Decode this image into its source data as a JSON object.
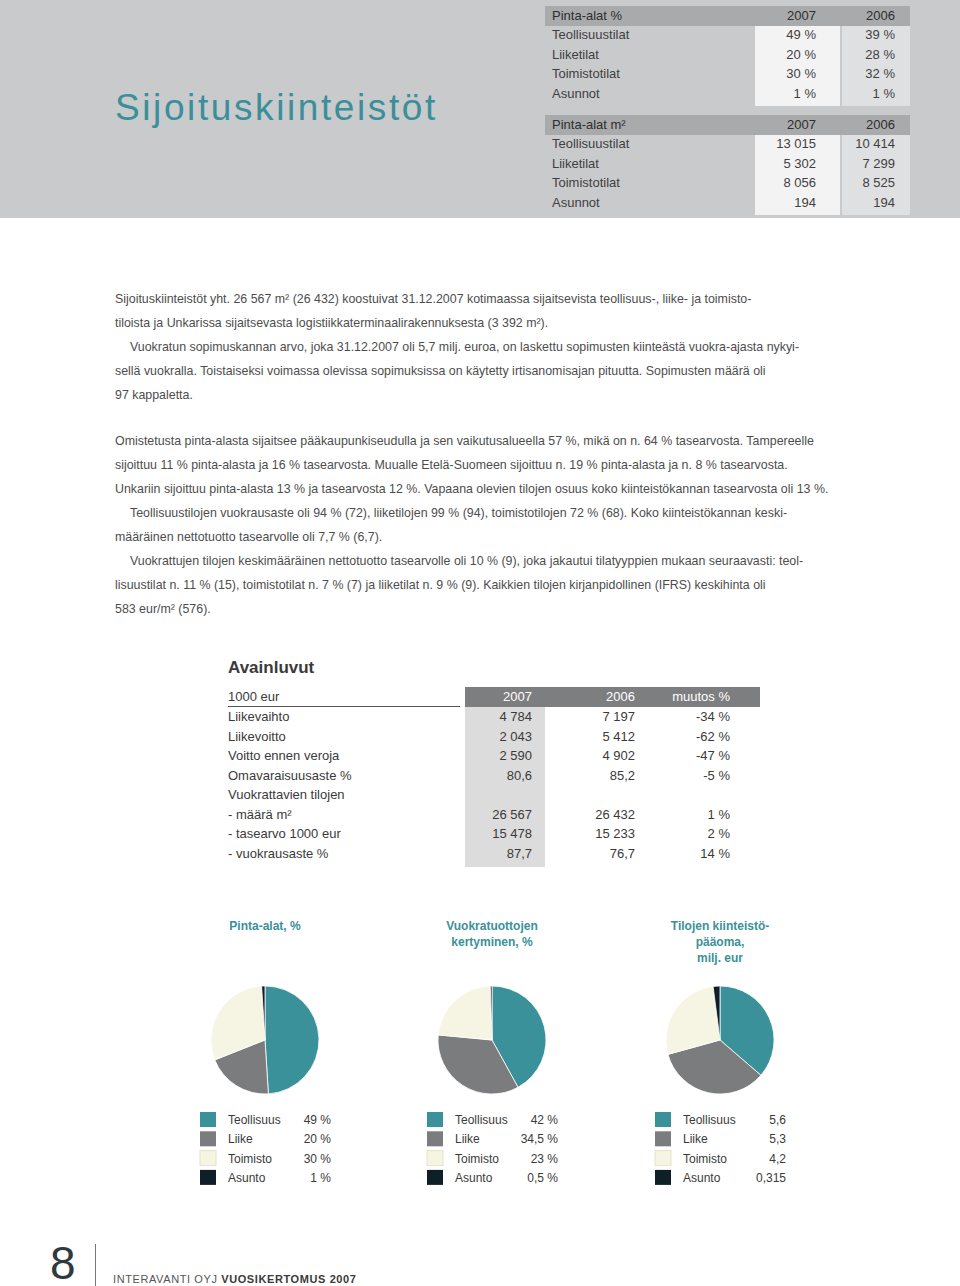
{
  "header": {
    "title": "Sijoituskiinteistöt",
    "area_tables": [
      {
        "header": [
          "Pinta-alat %",
          "2007",
          "2006"
        ],
        "rows": [
          [
            "Teollisuustilat",
            "49 %",
            "39 %"
          ],
          [
            "Liiketilat",
            "20 %",
            "28 %"
          ],
          [
            "Toimistotilat",
            "30 %",
            "32 %"
          ],
          [
            "Asunnot",
            "1 %",
            "1 %"
          ]
        ]
      },
      {
        "header": [
          "Pinta-alat m²",
          "2007",
          "2006"
        ],
        "rows": [
          [
            "Teollisuustilat",
            "13 015",
            "10 414"
          ],
          [
            "Liiketilat",
            "5 302",
            "7 299"
          ],
          [
            "Toimistotilat",
            "8 056",
            "8 525"
          ],
          [
            "Asunnot",
            "194",
            "194"
          ]
        ]
      }
    ]
  },
  "body": {
    "blocks": [
      [
        [
          "Sijoituskiinteistöt yht. 26 567 m² (26 432) koostuivat 31.12.2007 kotimaassa sijaitsevista teollisuus-, liike- ja toimisto-",
          "tiloista ja Unkarissa sijaitsevasta logistiikkaterminaalirakennuksesta (3 392 m²)."
        ],
        [
          "Vuokratun sopimuskannan arvo, joka 31.12.2007 oli 5,7 milj. euroa, on laskettu sopimusten kiinteästä vuokra-ajasta nykyi-",
          "sellä vuokralla. Toistaiseksi voimassa olevissa sopimuksissa on käytetty irtisanomisajan pituutta. Sopimusten määrä oli",
          "97 kappaletta."
        ]
      ],
      [
        [
          "Omistetusta pinta-alasta sijaitsee pääkaupunkiseudulla ja sen vaikutusalueella 57 %, mikä on n. 64 % tasearvosta. Tampereelle",
          "sijoittuu 11 % pinta-alasta ja 16 % tasearvosta. Muualle Etelä-Suomeen sijoittuu n. 19 % pinta-alasta ja n. 8 % tasearvosta.",
          "Unkariin sijoittuu pinta-alasta 13 % ja tasearvosta 12 %. Vapaana olevien tilojen osuus koko kiinteistökannan tasearvosta oli 13 %."
        ],
        [
          "Teollisuustilojen vuokrausaste oli 94 % (72), liiketilojen 99 % (94), toimistotilojen 72 % (68). Koko kiinteistökannan keski-",
          "määräinen nettotuotto tasearvolle oli 7,7 % (6,7)."
        ],
        [
          "Vuokrattujen tilojen keskimääräinen nettotuotto tasearvolle oli 10 % (9), joka jakautui tilatyyppien mukaan seuraavasti: teol-",
          "lisuustilat n. 11 % (15), toimistotilat n. 7 % (7) ja liiketilat n. 9 % (9). Kaikkien tilojen kirjanpidollinen (IFRS) keskihinta oli",
          "583 eur/m² (576)."
        ]
      ]
    ]
  },
  "key_figures": {
    "title": "Avainluvut",
    "header": [
      "1000 eur",
      "2007",
      "2006",
      "muutos %"
    ],
    "rows": [
      [
        "Liikevaihto",
        "4 784",
        "7 197",
        "-34 %"
      ],
      [
        "Liikevoitto",
        "2 043",
        "5 412",
        "-62 %"
      ],
      [
        "Voitto ennen veroja",
        "2 590",
        "4 902",
        "-47 %"
      ],
      [
        "Omavaraisuusaste %",
        "80,6",
        "85,2",
        "-5 %"
      ],
      [
        "Vuokrattavien tilojen",
        "",
        "",
        ""
      ],
      [
        "- määrä m²",
        "26 567",
        "26 432",
        "1 %"
      ],
      [
        "- tasearvo 1000 eur",
        "15 478",
        "15 233",
        "2 %"
      ],
      [
        "- vuokrausaste %",
        "87,7",
        "76,7",
        "14 %"
      ]
    ]
  },
  "chart_data": [
    {
      "type": "pie",
      "title": [
        "Pinta-alat, %"
      ],
      "categories": [
        "Teollisuus",
        "Liike",
        "Toimisto",
        "Asunto"
      ],
      "values": [
        49,
        20,
        30,
        1
      ],
      "value_labels": [
        "49 %",
        "20 %",
        "30 %",
        "1 %"
      ],
      "colors": [
        "#3a9199",
        "#7b7c7e",
        "#f6f4e2",
        "#0f1f27"
      ]
    },
    {
      "type": "pie",
      "title": [
        "Vuokratuottojen",
        "kertyminen, %"
      ],
      "categories": [
        "Teollisuus",
        "Liike",
        "Toimisto",
        "Asunto"
      ],
      "values": [
        42,
        34.5,
        23,
        0.5
      ],
      "value_labels": [
        "42 %",
        "34,5 %",
        "23 %",
        "0,5 %"
      ],
      "colors": [
        "#3a9199",
        "#7b7c7e",
        "#f6f4e2",
        "#0f1f27"
      ]
    },
    {
      "type": "pie",
      "title": [
        "Tilojen kiinteistö-",
        "pääoma,",
        "milj. eur"
      ],
      "categories": [
        "Teollisuus",
        "Liike",
        "Toimisto",
        "Asunto"
      ],
      "values": [
        5.6,
        5.3,
        4.2,
        0.315
      ],
      "value_labels": [
        "5,6",
        "5,3",
        "4,2",
        "0,315"
      ],
      "colors": [
        "#3a9199",
        "#7b7c7e",
        "#f6f4e2",
        "#0f1f27"
      ]
    }
  ],
  "footer": {
    "page": "8",
    "company": "INTERAVANTI OYJ",
    "report": "VUOSIKERTOMUS 2007"
  }
}
